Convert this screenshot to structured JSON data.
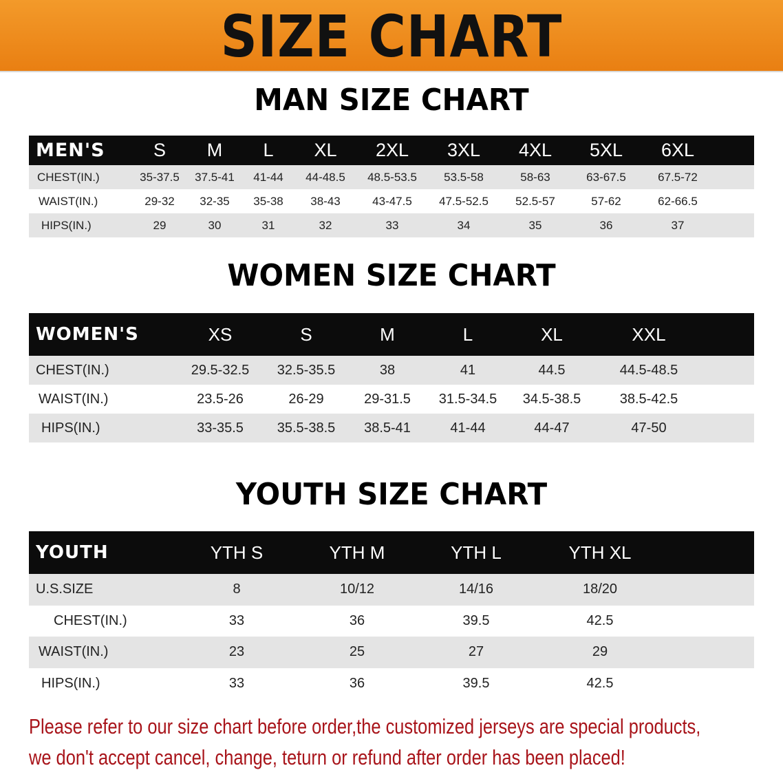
{
  "banner": {
    "title": "SIZE CHART",
    "color": "#ef8a1a"
  },
  "men": {
    "title": "MAN SIZE CHART",
    "header": [
      "MEN'S",
      "S",
      "M",
      "L",
      "XL",
      "2XL",
      "3XL",
      "4XL",
      "5XL",
      "6XL"
    ],
    "rows": [
      [
        "CHEST(IN.)",
        "35-37.5",
        "37.5-41",
        "41-44",
        "44-48.5",
        "48.5-53.5",
        "53.5-58",
        "58-63",
        "63-67.5",
        "67.5-72"
      ],
      [
        "WAIST(IN.)",
        "29-32",
        "32-35",
        "35-38",
        "38-43",
        "43-47.5",
        "47.5-52.5",
        "52.5-57",
        "57-62",
        "62-66.5"
      ],
      [
        "HIPS(IN.)",
        "29",
        "30",
        "31",
        "32",
        "33",
        "34",
        "35",
        "36",
        "37"
      ]
    ]
  },
  "women": {
    "title": "WOMEN SIZE CHART",
    "header": [
      "WOMEN'S",
      "XS",
      "S",
      "M",
      "L",
      "XL",
      "XXL"
    ],
    "rows": [
      [
        "CHEST(IN.)",
        "29.5-32.5",
        "32.5-35.5",
        "38",
        "41",
        "44.5",
        "44.5-48.5"
      ],
      [
        "WAIST(IN.)",
        "23.5-26",
        "26-29",
        "29-31.5",
        "31.5-34.5",
        "34.5-38.5",
        "38.5-42.5"
      ],
      [
        "HIPS(IN.)",
        "33-35.5",
        "35.5-38.5",
        "38.5-41",
        "41-44",
        "44-47",
        "47-50"
      ]
    ]
  },
  "youth": {
    "title": "YOUTH SIZE CHART",
    "header": [
      "YOUTH",
      "YTH S",
      "YTH M",
      "YTH L",
      "YTH XL"
    ],
    "rows": [
      [
        "U.S.SIZE",
        "8",
        "10/12",
        "14/16",
        "18/20"
      ],
      [
        "CHEST(IN.)",
        "33",
        "36",
        "39.5",
        "42.5"
      ],
      [
        "WAIST(IN.)",
        "23",
        "25",
        "27",
        "29"
      ],
      [
        "HIPS(IN.)",
        "33",
        "36",
        "39.5",
        "42.5"
      ]
    ]
  },
  "notice": {
    "line1": "Please refer to our size chart before order,the customized jerseys are special products,",
    "line2": "we don't accept cancel, change, teturn or refund after order has been placed!",
    "color": "#a8141a"
  }
}
